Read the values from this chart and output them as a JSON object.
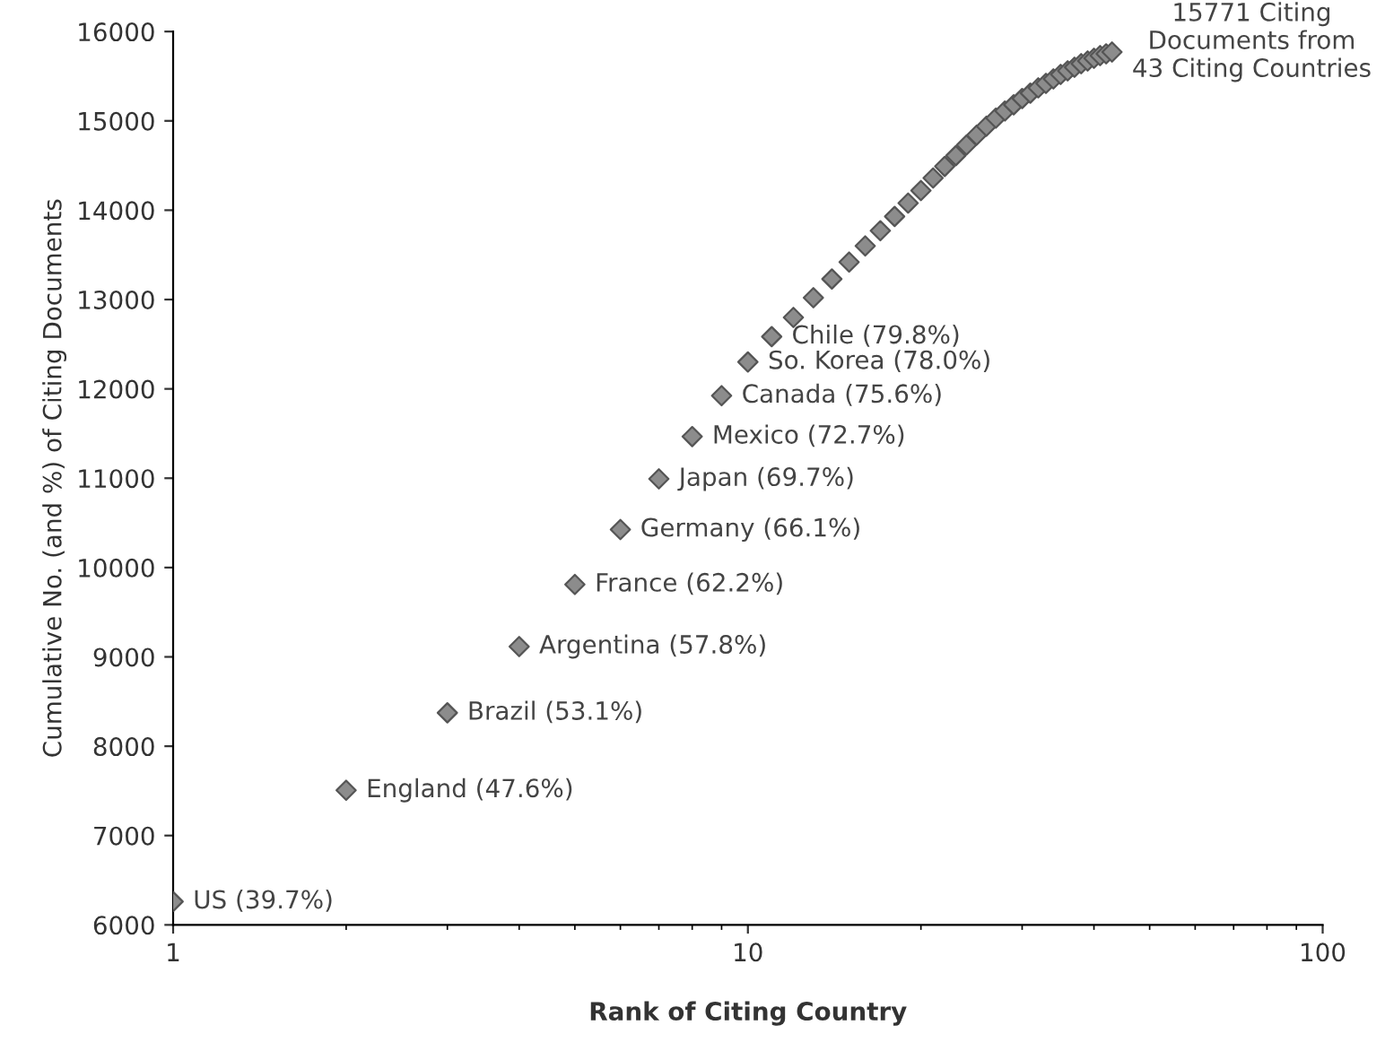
{
  "chart_data": {
    "type": "scatter",
    "xlabel": "Rank of Citing Country",
    "ylabel": "Cumulative No. (and %) of Citing Documents",
    "x": [
      1,
      2,
      3,
      4,
      5,
      6,
      7,
      8,
      9,
      10,
      11,
      12,
      13,
      14,
      15,
      16,
      17,
      18,
      19,
      20,
      21,
      22,
      23,
      24,
      25,
      26,
      27,
      28,
      29,
      30,
      31,
      32,
      33,
      34,
      35,
      36,
      37,
      38,
      39,
      40,
      41,
      42,
      43
    ],
    "values": [
      6261,
      7507,
      8374,
      9116,
      9810,
      10425,
      10992,
      11466,
      11923,
      12301,
      12585,
      12800,
      13020,
      13230,
      13420,
      13600,
      13770,
      13930,
      14080,
      14220,
      14360,
      14490,
      14610,
      14730,
      14840,
      14940,
      15030,
      15110,
      15180,
      15250,
      15310,
      15370,
      15420,
      15470,
      15520,
      15560,
      15600,
      15640,
      15670,
      15700,
      15730,
      15750,
      15771
    ],
    "color": "#8c8c8c",
    "marker": "diamond",
    "log": "x",
    "grid": false,
    "legend": false,
    "xlim": [
      1,
      100
    ],
    "xticks": [
      1,
      10,
      100
    ],
    "ylim": [
      6000,
      16000
    ],
    "yticks": [
      6000,
      7000,
      8000,
      9000,
      10000,
      11000,
      12000,
      13000,
      14000,
      15000,
      16000
    ],
    "annotations": [
      {
        "text": "US (39.7%)",
        "x": 1,
        "y": 6261
      },
      {
        "text": "England (47.6%)",
        "x": 2,
        "y": 7507
      },
      {
        "text": "Brazil (53.1%)",
        "x": 3,
        "y": 8374
      },
      {
        "text": "Argentina (57.8%)",
        "x": 4,
        "y": 9116
      },
      {
        "text": "France (62.2%)",
        "x": 5,
        "y": 9810
      },
      {
        "text": "Germany (66.1%)",
        "x": 6,
        "y": 10425
      },
      {
        "text": "Japan (69.7%)",
        "x": 7,
        "y": 10992
      },
      {
        "text": "Mexico (72.7%)",
        "x": 8,
        "y": 11466
      },
      {
        "text": "Canada (75.6%)",
        "x": 9,
        "y": 11923
      },
      {
        "text": "So. Korea (78.0%)",
        "x": 10,
        "y": 12301
      },
      {
        "text": "Chile (79.8%)",
        "x": 11,
        "y": 12585
      },
      {
        "text": "15771 Citing\nDocuments from\n43 Citing Countries",
        "x": 43,
        "y": 15771
      }
    ]
  }
}
